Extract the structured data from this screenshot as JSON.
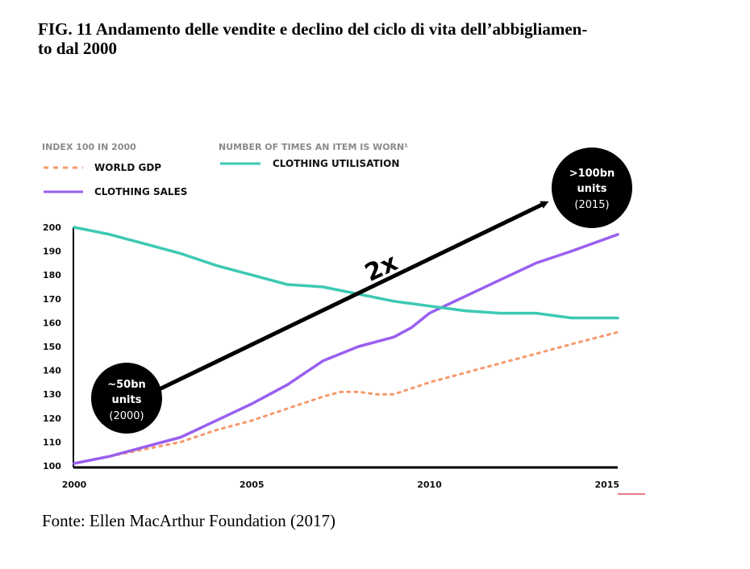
{
  "figure": {
    "title": "FIG. 11 Andamento delle vendite e declino del ciclo di vita dell’abbigliamen-to dal 2000",
    "title_line1": "FIG. 11 Andamento delle vendite e declino del ciclo di vita dell’abbigliamen-",
    "title_line2": "to dal 2000",
    "source": "Fonte: Ellen MacArthur Foundation (2017)"
  },
  "chart_data": {
    "type": "line",
    "left_header": "INDEX 100 IN 2000",
    "right_header": "NUMBER OF TIMES AN ITEM IS WORN¹",
    "xlim": [
      2000,
      2015.3
    ],
    "ylim": [
      100,
      200
    ],
    "x_ticks": [
      "2000",
      "2005",
      "2010",
      "2015"
    ],
    "y_ticks": [
      "200",
      "190",
      "180",
      "170",
      "160",
      "150",
      "140",
      "130",
      "120",
      "110",
      "100"
    ],
    "series": [
      {
        "name": "WORLD GDP",
        "color": "#f59a6c",
        "style": "dashed",
        "x": [
          2000,
          2001,
          2002,
          2003,
          2004,
          2005,
          2006,
          2007,
          2007.5,
          2008,
          2008.5,
          2009,
          2010,
          2011,
          2012,
          2013,
          2014,
          2015.3
        ],
        "y": [
          101,
          104,
          107,
          110,
          115,
          119,
          124,
          129,
          131,
          131,
          130,
          130,
          135,
          139,
          143,
          147,
          151,
          156
        ]
      },
      {
        "name": "CLOTHING SALES",
        "color": "#9a5ff0",
        "style": "solid",
        "x": [
          2000,
          2001,
          2002,
          2003,
          2004,
          2005,
          2005.5,
          2006,
          2007,
          2007.5,
          2008,
          2009,
          2009.5,
          2010,
          2011,
          2012,
          2013,
          2014,
          2015.3
        ],
        "y": [
          101,
          104,
          108,
          112,
          119,
          126,
          130,
          134,
          144,
          147,
          150,
          154,
          158,
          164,
          171,
          178,
          185,
          190,
          197
        ]
      },
      {
        "name": "CLOTHING UTILISATION",
        "color": "#3dc9b3",
        "style": "solid",
        "x": [
          2000,
          2001,
          2002,
          2003,
          2004,
          2005,
          2006,
          2007,
          2008,
          2009,
          2010,
          2011,
          2012,
          2013,
          2014,
          2015.3
        ],
        "y": [
          200,
          197,
          193,
          189,
          184,
          180,
          176,
          175,
          172,
          169,
          167,
          165,
          164,
          164,
          162,
          162
        ]
      }
    ],
    "annotations": {
      "arrow_label": "2x",
      "start_callout": {
        "line1": "~50bn",
        "line2": "units",
        "line3": "(2000)"
      },
      "end_callout": {
        "line1": ">100bn",
        "line2": "units",
        "line3": "(2015)"
      }
    }
  }
}
